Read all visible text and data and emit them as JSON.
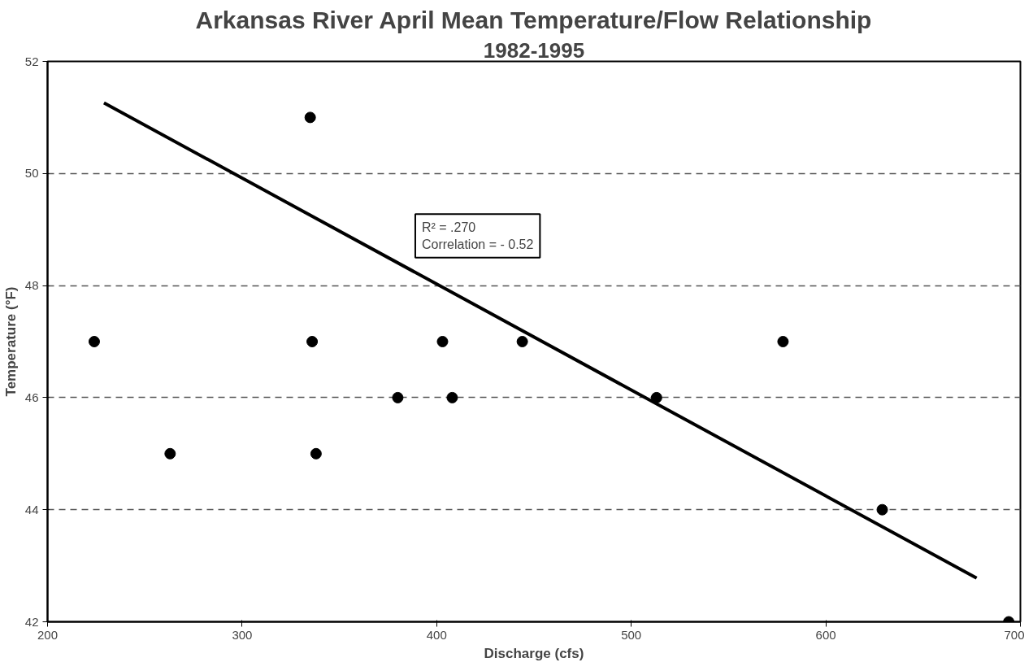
{
  "chart_data": {
    "type": "scatter",
    "title": "Arkansas River April Mean Temperature/Flow Relationship",
    "subtitle": "1982-1995",
    "xlabel": "Discharge (cfs)",
    "ylabel": "Temperature (°F)",
    "xlim": [
      200,
      700
    ],
    "ylim": [
      42,
      52
    ],
    "xticks": [
      200,
      300,
      400,
      500,
      600,
      700
    ],
    "yticks": [
      42,
      44,
      46,
      48,
      50,
      52
    ],
    "grid": "y",
    "annotations": [
      "R² = .270",
      "Correlation = - 0.52"
    ],
    "series": [
      {
        "marker": "circle",
        "color": "#000000",
        "x": [
          224,
          263,
          335,
          336,
          338,
          380,
          403,
          408,
          444,
          513,
          578,
          629,
          694
        ],
        "values": [
          47,
          45,
          51,
          47,
          45,
          46,
          47,
          46,
          47,
          46,
          47,
          44,
          42
        ]
      },
      {
        "type": "line",
        "line_style": "solid",
        "marker": "none",
        "color": "#000000",
        "x": [
          229,
          677.5
        ],
        "values": [
          51.26,
          42.78
        ]
      }
    ]
  }
}
